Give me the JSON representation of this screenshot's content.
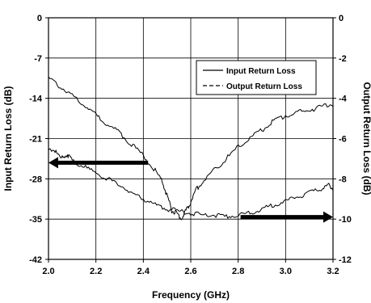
{
  "chart_data": {
    "type": "line",
    "title": "",
    "xlabel": "Frequency (GHz)",
    "ylabel_left": "Input Return Loss (dB)",
    "ylabel_right": "Output Return Loss (dB)",
    "xlim": [
      2.0,
      3.2
    ],
    "ylim_left": [
      -42,
      0
    ],
    "ylim_right": [
      -12,
      0
    ],
    "x_ticks": [
      "2.0",
      "2.2",
      "2.4",
      "2.6",
      "2.8",
      "3.0",
      "3.2"
    ],
    "y_ticks_left": [
      "0",
      "-7",
      "-14",
      "-21",
      "-28",
      "-35",
      "-42"
    ],
    "y_ticks_right": [
      "0",
      "-2",
      "-4",
      "-6",
      "-8",
      "-10",
      "-12"
    ],
    "grid": true,
    "legend_position": "top-right",
    "series": [
      {
        "name": "Input Return Loss",
        "axis": "left",
        "line_style": "solid",
        "x": [
          2.0,
          2.05,
          2.1,
          2.15,
          2.2,
          2.25,
          2.3,
          2.35,
          2.4,
          2.45,
          2.48,
          2.5,
          2.52,
          2.54,
          2.56,
          2.58,
          2.6,
          2.62,
          2.65,
          2.7,
          2.75,
          2.8,
          2.85,
          2.9,
          2.95,
          3.0,
          3.05,
          3.1,
          3.15,
          3.2
        ],
        "values": [
          -10.5,
          -12.0,
          -13.5,
          -15.0,
          -17.0,
          -18.5,
          -20.0,
          -22.0,
          -24.0,
          -26.5,
          -28.5,
          -31.0,
          -33.5,
          -34.0,
          -35.0,
          -33.5,
          -32.0,
          -30.0,
          -28.5,
          -26.5,
          -24.5,
          -22.5,
          -21.0,
          -19.5,
          -18.0,
          -17.0,
          -16.5,
          -16.0,
          -15.5,
          -15.0
        ]
      },
      {
        "name": "Output Return Loss",
        "axis": "right",
        "line_style": "dashed",
        "x": [
          2.0,
          2.02,
          2.05,
          2.08,
          2.1,
          2.15,
          2.2,
          2.25,
          2.3,
          2.35,
          2.4,
          2.45,
          2.5,
          2.55,
          2.6,
          2.65,
          2.7,
          2.75,
          2.8,
          2.85,
          2.9,
          2.95,
          3.0,
          3.05,
          3.1,
          3.15,
          3.18,
          3.2
        ],
        "values": [
          -6.6,
          -6.5,
          -7.0,
          -6.8,
          -7.1,
          -7.4,
          -7.7,
          -8.0,
          -8.3,
          -8.7,
          -9.0,
          -9.3,
          -9.5,
          -9.6,
          -9.7,
          -9.8,
          -9.8,
          -9.9,
          -9.8,
          -9.7,
          -9.5,
          -9.3,
          -9.1,
          -8.9,
          -8.7,
          -8.5,
          -8.3,
          -8.5
        ]
      }
    ],
    "annotations": [
      {
        "kind": "arrow",
        "direction": "left",
        "meaning": "input series uses left axis",
        "from": {
          "x": 2.42,
          "y_left": -25.2
        },
        "to": {
          "x": 2.0,
          "y_left": -25.2
        }
      },
      {
        "kind": "arrow",
        "direction": "right",
        "meaning": "output series uses right axis",
        "from": {
          "x": 2.81,
          "y_right": -9.9
        },
        "to": {
          "x": 3.2,
          "y_right": -9.9
        }
      }
    ]
  }
}
